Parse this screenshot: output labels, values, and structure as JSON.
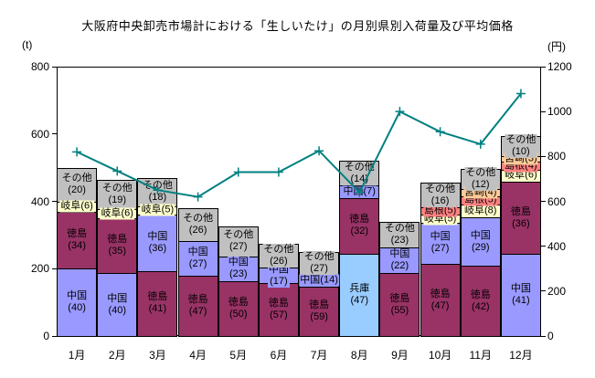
{
  "title": "大阪府中央卸売市場計における「生しいたけ」の月別県別入荷量及び平均価格",
  "chart_data": {
    "type": "bar",
    "subtype": "stacked-bar-with-line",
    "grid": false,
    "legend": false,
    "categories": [
      "1月",
      "2月",
      "3月",
      "4月",
      "5月",
      "6月",
      "7月",
      "8月",
      "9月",
      "10月",
      "11月",
      "12月"
    ],
    "left_axis": {
      "unit": "(t)",
      "min": 0,
      "max": 800,
      "ticks": [
        0,
        200,
        400,
        600,
        800
      ]
    },
    "right_axis": {
      "unit": "(円)",
      "min": 0,
      "max": 1200,
      "ticks": [
        0,
        200,
        400,
        600,
        800,
        1000,
        1200
      ]
    },
    "bars_note": "segments listed bottom-to-top; pct = share (%) shown in label; total_t = bar height in tons read from left axis",
    "bars": [
      {
        "month": "1月",
        "total_t": 500,
        "segments": [
          {
            "pref": "中国",
            "pct": 40
          },
          {
            "pref": "徳島",
            "pct": 34
          },
          {
            "pref": "岐阜",
            "pct": 6
          },
          {
            "pref": "その他",
            "pct": 20
          }
        ]
      },
      {
        "month": "2月",
        "total_t": 465,
        "segments": [
          {
            "pref": "中国",
            "pct": 40
          },
          {
            "pref": "徳島",
            "pct": 35
          },
          {
            "pref": "岐阜",
            "pct": 6
          },
          {
            "pref": "その他",
            "pct": 19
          }
        ]
      },
      {
        "month": "3月",
        "total_t": 470,
        "segments": [
          {
            "pref": "徳島",
            "pct": 41
          },
          {
            "pref": "中国",
            "pct": 36
          },
          {
            "pref": "岐阜",
            "pct": 5
          },
          {
            "pref": "その他",
            "pct": 18
          }
        ]
      },
      {
        "month": "4月",
        "total_t": 380,
        "segments": [
          {
            "pref": "徳島",
            "pct": 47
          },
          {
            "pref": "中国",
            "pct": 27
          },
          {
            "pref": "その他",
            "pct": 26
          }
        ]
      },
      {
        "month": "5月",
        "total_t": 325,
        "segments": [
          {
            "pref": "徳島",
            "pct": 50
          },
          {
            "pref": "中国",
            "pct": 23
          },
          {
            "pref": "その他",
            "pct": 27
          }
        ]
      },
      {
        "month": "6月",
        "total_t": 275,
        "segments": [
          {
            "pref": "徳島",
            "pct": 57
          },
          {
            "pref": "中国",
            "pct": 17
          },
          {
            "pref": "その他",
            "pct": 26
          }
        ]
      },
      {
        "month": "7月",
        "total_t": 250,
        "segments": [
          {
            "pref": "徳島",
            "pct": 59
          },
          {
            "pref": "中国",
            "pct": 14
          },
          {
            "pref": "その他",
            "pct": 27
          }
        ]
      },
      {
        "month": "8月",
        "total_t": 520,
        "segments": [
          {
            "pref": "兵庫",
            "pct": 47
          },
          {
            "pref": "徳島",
            "pct": 32
          },
          {
            "pref": "中国",
            "pct": 7
          },
          {
            "pref": "その他",
            "pct": 14
          }
        ]
      },
      {
        "month": "9月",
        "total_t": 340,
        "segments": [
          {
            "pref": "徳島",
            "pct": 55
          },
          {
            "pref": "中国",
            "pct": 22
          },
          {
            "pref": "その他",
            "pct": 23
          }
        ]
      },
      {
        "month": "10月",
        "total_t": 455,
        "segments": [
          {
            "pref": "徳島",
            "pct": 47
          },
          {
            "pref": "中国",
            "pct": 27
          },
          {
            "pref": "岐阜",
            "pct": 5
          },
          {
            "pref": "島根",
            "pct": 5
          },
          {
            "pref": "その他",
            "pct": 16
          }
        ]
      },
      {
        "month": "11月",
        "total_t": 495,
        "segments": [
          {
            "pref": "徳島",
            "pct": 42
          },
          {
            "pref": "中国",
            "pct": 29
          },
          {
            "pref": "岐阜",
            "pct": 8
          },
          {
            "pref": "島根",
            "pct": 5
          },
          {
            "pref": "宮崎",
            "pct": 4
          },
          {
            "pref": "その他",
            "pct": 12
          }
        ]
      },
      {
        "month": "12月",
        "total_t": 595,
        "segments": [
          {
            "pref": "中国",
            "pct": 41
          },
          {
            "pref": "徳島",
            "pct": 36
          },
          {
            "pref": "岐阜",
            "pct": 6
          },
          {
            "pref": "島根",
            "pct": 4
          },
          {
            "pref": "宮崎",
            "pct": 3
          },
          {
            "pref": "その他",
            "pct": 10
          }
        ]
      }
    ],
    "line": {
      "name": "平均価格",
      "unit": "円",
      "marker": "plus",
      "values": [
        820,
        735,
        650,
        620,
        730,
        730,
        825,
        640,
        1000,
        910,
        855,
        1080
      ]
    },
    "colors": {
      "中国": "#9999FF",
      "徳島": "#993366",
      "岐阜": "#FFFFCC",
      "兵庫": "#99CCFF",
      "島根": "#FF8080",
      "宮崎": "#FFCC99",
      "その他": "#C0C0C0",
      "line": "#008080",
      "axis": "#000000",
      "background": "#FFFFFF"
    }
  }
}
